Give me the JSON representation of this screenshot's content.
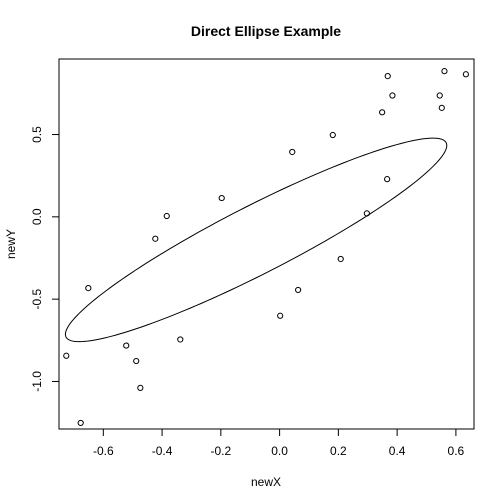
{
  "chart_data": {
    "type": "scatter",
    "title": "Direct Ellipse Example",
    "xlabel": "newX",
    "ylabel": "newY",
    "xlim": [
      -0.7508,
      0.6616
    ],
    "ylim": [
      -1.2888,
      0.9588
    ],
    "x_ticks": [
      {
        "value": -0.6,
        "label": "-0.6"
      },
      {
        "value": -0.4,
        "label": "-0.4"
      },
      {
        "value": -0.2,
        "label": "-0.2"
      },
      {
        "value": 0.0,
        "label": "0.0"
      },
      {
        "value": 0.2,
        "label": "0.2"
      },
      {
        "value": 0.4,
        "label": "0.4"
      },
      {
        "value": 0.6,
        "label": "0.6"
      }
    ],
    "y_ticks": [
      {
        "value": -1.0,
        "label": "-1.0"
      },
      {
        "value": -0.5,
        "label": "-0.5"
      },
      {
        "value": 0.0,
        "label": "0.0"
      },
      {
        "value": 0.5,
        "label": "0.5"
      }
    ],
    "grid": false,
    "points": [
      {
        "x": -0.726,
        "y": -0.844
      },
      {
        "x": -0.677,
        "y": -1.252
      },
      {
        "x": -0.651,
        "y": -0.433
      },
      {
        "x": -0.522,
        "y": -0.782
      },
      {
        "x": -0.488,
        "y": -0.876
      },
      {
        "x": -0.474,
        "y": -1.039
      },
      {
        "x": -0.423,
        "y": -0.133
      },
      {
        "x": -0.384,
        "y": 0.005
      },
      {
        "x": -0.338,
        "y": -0.745
      },
      {
        "x": -0.197,
        "y": 0.114
      },
      {
        "x": 0.002,
        "y": -0.601
      },
      {
        "x": 0.043,
        "y": 0.394
      },
      {
        "x": 0.063,
        "y": -0.444
      },
      {
        "x": 0.181,
        "y": 0.497
      },
      {
        "x": 0.208,
        "y": -0.256
      },
      {
        "x": 0.297,
        "y": 0.021
      },
      {
        "x": 0.349,
        "y": 0.635
      },
      {
        "x": 0.366,
        "y": 0.229
      },
      {
        "x": 0.368,
        "y": 0.855
      },
      {
        "x": 0.384,
        "y": 0.737
      },
      {
        "x": 0.545,
        "y": 0.737
      },
      {
        "x": 0.552,
        "y": 0.662
      },
      {
        "x": 0.561,
        "y": 0.885
      },
      {
        "x": 0.634,
        "y": 0.866
      }
    ],
    "ellipse": {
      "center": [
        -0.08,
        -0.14
      ],
      "semi_major": 0.88,
      "semi_minor": 0.17,
      "angle_deg": 43.5
    }
  }
}
